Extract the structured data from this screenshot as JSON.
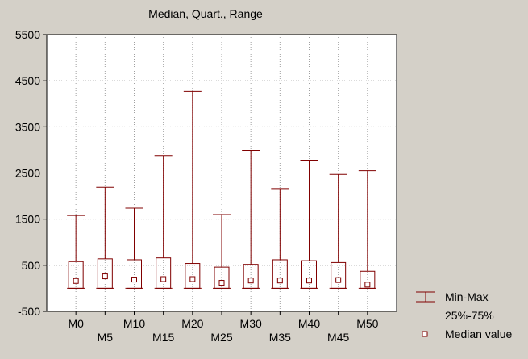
{
  "chart_data": {
    "type": "box",
    "title": "Median, Quart., Range",
    "xlabel": "",
    "ylabel": "",
    "ylim": [
      -500,
      5500
    ],
    "yticks": [
      -500,
      500,
      1500,
      2500,
      3500,
      4500,
      5500
    ],
    "ytick_labels": [
      "-500",
      "500",
      "1500",
      "2500",
      "3500",
      "4500",
      "5500"
    ],
    "grid": true,
    "categories": [
      "M0",
      "M5",
      "M10",
      "M15",
      "M20",
      "M25",
      "M30",
      "M35",
      "M40",
      "M45",
      "M50"
    ],
    "series": [
      {
        "name": "Min-Max",
        "min": [
          0,
          0,
          0,
          0,
          0,
          0,
          0,
          0,
          0,
          0,
          0
        ],
        "max": [
          1580,
          2190,
          1740,
          2880,
          4270,
          1600,
          2990,
          2160,
          2780,
          2470,
          2550
        ]
      },
      {
        "name": "25%-75%",
        "q1": [
          0,
          0,
          0,
          0,
          0,
          0,
          0,
          0,
          0,
          0,
          0
        ],
        "q3": [
          580,
          640,
          620,
          660,
          540,
          460,
          520,
          620,
          600,
          560,
          370
        ]
      },
      {
        "name": "Median value",
        "values": [
          160,
          260,
          190,
          200,
          200,
          120,
          170,
          170,
          170,
          180,
          80
        ]
      }
    ],
    "legend": {
      "position": "right",
      "items": [
        {
          "label": "Min-Max",
          "symbol": "whisker"
        },
        {
          "label": "25%-75%",
          "symbol": "box"
        },
        {
          "label": "Median value",
          "symbol": "square-marker"
        }
      ]
    },
    "colors": {
      "background": "#d4d0c8",
      "plot_area": "#ffffff",
      "series": "#800000",
      "grid": "#a0a0a0"
    }
  }
}
